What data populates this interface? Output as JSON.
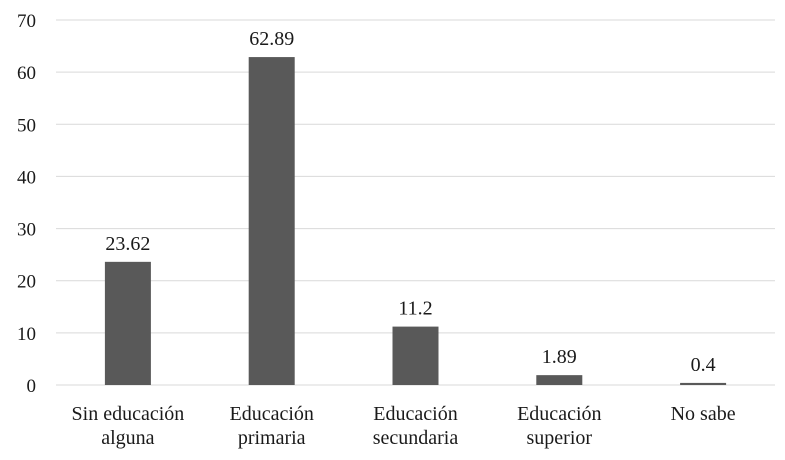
{
  "chart_data": {
    "type": "bar",
    "categories": [
      [
        "Sin educación",
        "alguna"
      ],
      [
        "Educación",
        "primaria"
      ],
      [
        "Educación",
        "secundaria"
      ],
      [
        "Educación",
        "superior"
      ],
      [
        "No sabe"
      ]
    ],
    "values": [
      23.62,
      62.89,
      11.2,
      1.89,
      0.4
    ],
    "data_labels": [
      "23.62",
      "62.89",
      "11.2",
      "1.89",
      "0.4"
    ],
    "ylim": [
      0,
      70
    ],
    "yticks": [
      0,
      10,
      20,
      30,
      40,
      50,
      60,
      70
    ],
    "grid": true,
    "legend": "none",
    "title": "",
    "xlabel": "",
    "ylabel": "",
    "colors": {
      "bar": "#595959",
      "grid": "#d9d9d9",
      "text": "#1a1a1a"
    }
  }
}
